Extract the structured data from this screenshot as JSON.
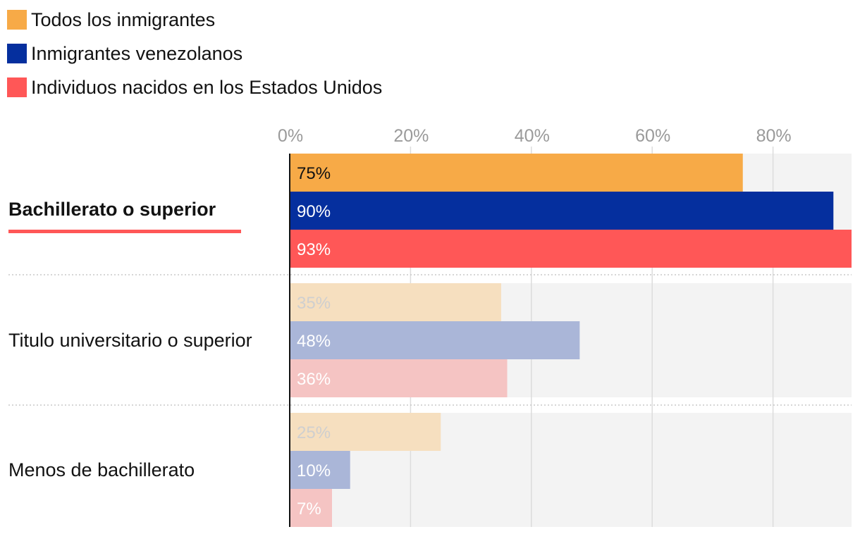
{
  "colors": {
    "all_immigrants": "#f7aa47",
    "venezuelan_immigrants": "#052f9e",
    "us_born": "#ff5757",
    "panel_bg": "#f3f3f3",
    "grid": "#dcdcdc",
    "axis": "#121212",
    "tick_text": "#9a9a9a"
  },
  "chart_data": {
    "type": "bar",
    "orientation": "horizontal",
    "categories": [
      "Bachillerato o superior",
      "Titulo universitario o superior",
      "Menos de bachillerato"
    ],
    "highlighted_category": "Bachillerato o superior",
    "series": [
      {
        "name": "Todos los inmigrantes",
        "color": "#f7aa47",
        "faded_color": "#f6dfbf",
        "values": [
          75,
          35,
          25
        ],
        "labels": [
          "75%",
          "35%",
          "25%"
        ]
      },
      {
        "name": "Inmigrantes venezolanos",
        "color": "#052f9e",
        "faded_color": "#aab6d8",
        "values": [
          90,
          48,
          10
        ],
        "labels": [
          "90%",
          "48%",
          "10%"
        ]
      },
      {
        "name": "Individuos nacidos en los Estados Unidos",
        "color": "#ff5757",
        "faded_color": "#f5c4c3",
        "values": [
          93,
          36,
          7
        ],
        "labels": [
          "93%",
          "36%",
          "7%"
        ]
      }
    ],
    "ticks": [
      "0%",
      "20%",
      "40%",
      "60%",
      "80%"
    ],
    "tick_values": [
      0,
      20,
      40,
      60,
      80
    ],
    "xlim": [
      0,
      93
    ],
    "grid": true,
    "legend_position": "top-left",
    "title": "",
    "xlabel": "",
    "ylabel": ""
  }
}
